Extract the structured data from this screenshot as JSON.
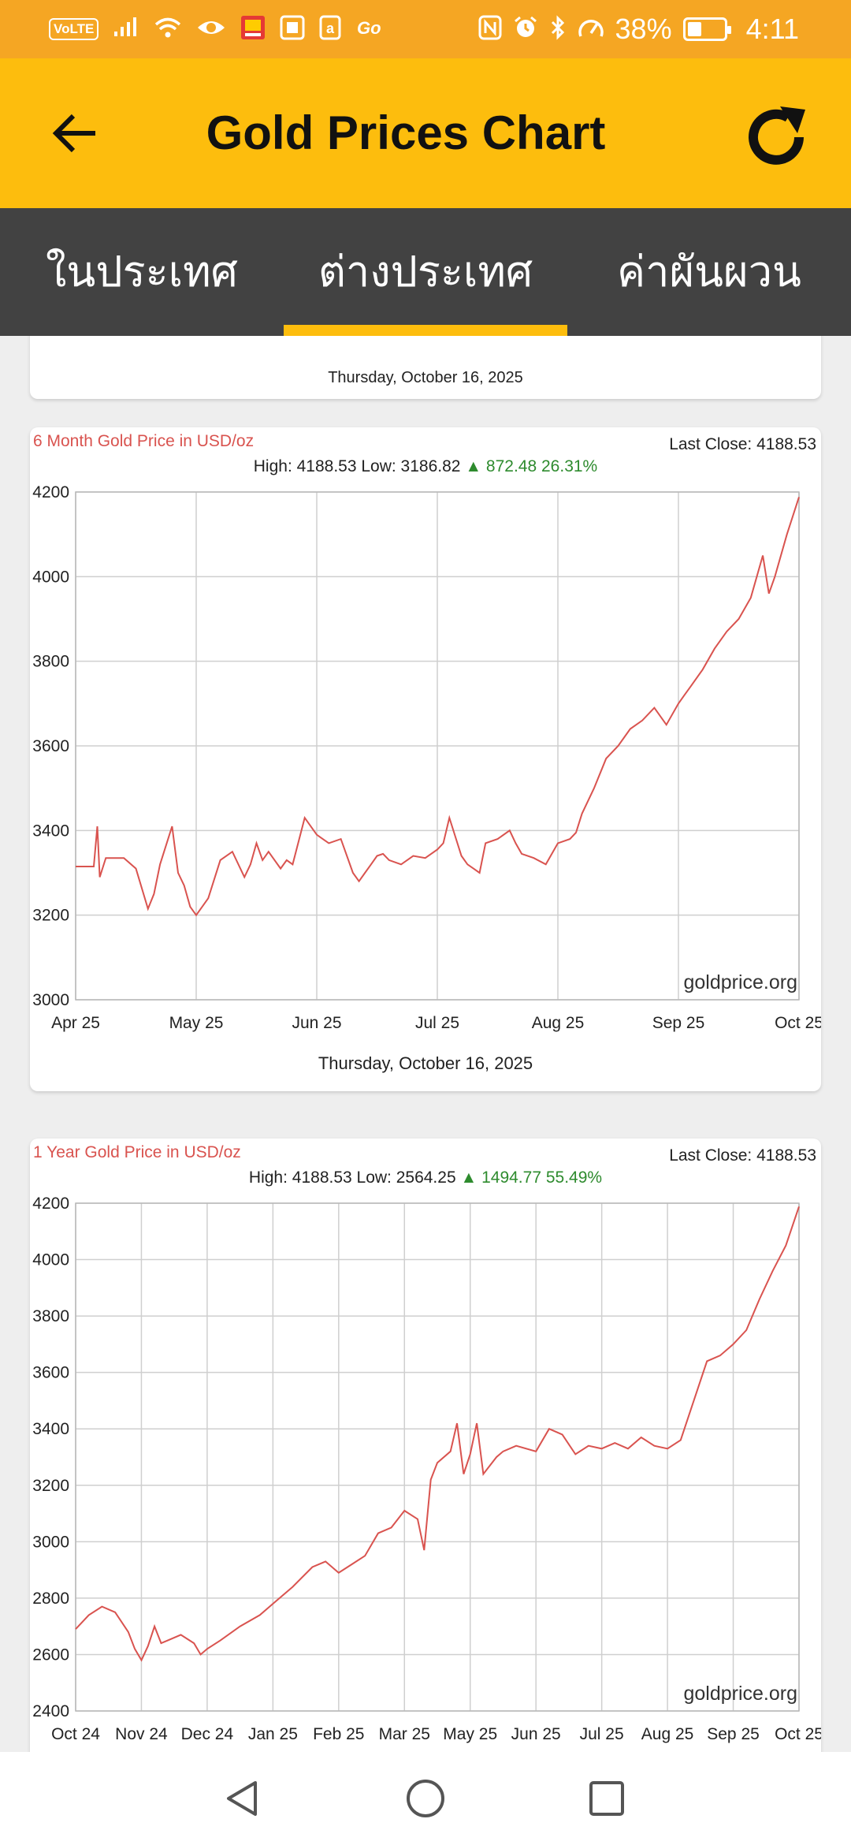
{
  "status_bar": {
    "volte": "VoLTE",
    "battery_percent": "38%",
    "battery_level": 0.38,
    "time": "4:11",
    "left_icons": [
      "signal-icon",
      "wifi-icon",
      "eye-icon",
      "app-notification-icon",
      "image-icon",
      "amazon-icon",
      "go-icon"
    ],
    "right_icons": [
      "nfc-icon",
      "alarm-icon",
      "bluetooth-icon",
      "speed-icon"
    ]
  },
  "app_bar": {
    "title": "Gold Prices Chart",
    "background": "#fdbd0d",
    "icons": {
      "back": "arrow-left-icon",
      "refresh": "refresh-icon"
    }
  },
  "tabs": [
    {
      "label": "ในประเทศ",
      "active": false
    },
    {
      "label": "ต่างประเทศ",
      "active": true
    },
    {
      "label": "ค่าผันผวน",
      "active": false
    }
  ],
  "partial_card": {
    "date": "Thursday, October 16, 2025"
  },
  "chart_data": [
    {
      "type": "line",
      "title": "6 Month Gold Price in USD/oz",
      "last_close": "Last Close: 4188.53",
      "summary": "High: 4188.53 Low: 3186.82",
      "change": "▲ 872.48 26.31%",
      "watermark": "goldprice.org",
      "date_label": "Thursday, October 16, 2025",
      "x_ticks": [
        "Apr 25",
        "May 25",
        "Jun 25",
        "Jul 25",
        "Aug 25",
        "Sep 25",
        "Oct 25"
      ],
      "x_range": [
        0,
        6
      ],
      "ylim": [
        3000,
        4200
      ],
      "y_ticks": [
        4200,
        4000,
        3800,
        3600,
        3400,
        3200,
        3000
      ],
      "grid": true,
      "line_color": "#d9534f",
      "series": [
        {
          "x": [
            0,
            0.15,
            0.18,
            0.2,
            0.25,
            0.4,
            0.5,
            0.6,
            0.65,
            0.7,
            0.8,
            0.85,
            0.9,
            0.95,
            1.0,
            1.1,
            1.2,
            1.3,
            1.4,
            1.45,
            1.5,
            1.55,
            1.6,
            1.7,
            1.75,
            1.8,
            1.9,
            2.0,
            2.05,
            2.1,
            2.2,
            2.3,
            2.35,
            2.4,
            2.45,
            2.5,
            2.55,
            2.6,
            2.7,
            2.8,
            2.9,
            3.0,
            3.05,
            3.1,
            3.2,
            3.25,
            3.3,
            3.35,
            3.4,
            3.5,
            3.6,
            3.65,
            3.7,
            3.8,
            3.9,
            4.0,
            4.05,
            4.1,
            4.15,
            4.2,
            4.3,
            4.4,
            4.5,
            4.6,
            4.7,
            4.8,
            4.9,
            5.0,
            5.05,
            5.1,
            5.2,
            5.3,
            5.4,
            5.5,
            5.6,
            5.7,
            5.75,
            5.8,
            5.9,
            6.0
          ],
          "y": [
            3315,
            3315,
            3410,
            3290,
            3335,
            3335,
            3310,
            3215,
            3250,
            3320,
            3410,
            3300,
            3270,
            3220,
            3200,
            3240,
            3330,
            3350,
            3290,
            3320,
            3370,
            3330,
            3350,
            3310,
            3330,
            3320,
            3430,
            3390,
            3380,
            3370,
            3380,
            3300,
            3280,
            3300,
            3320,
            3340,
            3345,
            3330,
            3320,
            3340,
            3335,
            3355,
            3370,
            3430,
            3340,
            3320,
            3310,
            3300,
            3370,
            3380,
            3400,
            3370,
            3345,
            3335,
            3320,
            3370,
            3375,
            3380,
            3395,
            3440,
            3500,
            3570,
            3600,
            3640,
            3660,
            3690,
            3650,
            3700,
            3720,
            3740,
            3780,
            3830,
            3870,
            3900,
            3950,
            4050,
            3960,
            4000,
            4100,
            4188
          ]
        }
      ]
    },
    {
      "type": "line",
      "title": "1 Year Gold Price in USD/oz",
      "last_close": "Last Close: 4188.53",
      "summary": "High: 4188.53 Low: 2564.25",
      "change": "▲ 1494.77 55.49%",
      "watermark": "goldprice.org",
      "x_ticks": [
        "Oct 24",
        "Nov 24",
        "Dec 24",
        "Jan 25",
        "Feb 25",
        "Mar 25",
        "May 25",
        "Jun 25",
        "Jul 25",
        "Aug 25",
        "Sep 25",
        "Oct 25"
      ],
      "x_range": [
        0,
        11
      ],
      "ylim": [
        2400,
        4200
      ],
      "y_ticks": [
        4200,
        4000,
        3800,
        3600,
        3400,
        3200,
        3000,
        2800,
        2600,
        2400
      ],
      "grid": true,
      "line_color": "#d9534f",
      "series": [
        {
          "x": [
            0,
            0.2,
            0.4,
            0.6,
            0.8,
            0.9,
            1.0,
            1.1,
            1.2,
            1.3,
            1.4,
            1.6,
            1.8,
            1.9,
            2.0,
            2.2,
            2.5,
            2.8,
            3.0,
            3.3,
            3.6,
            3.8,
            4.0,
            4.2,
            4.4,
            4.6,
            4.8,
            5.0,
            5.2,
            5.3,
            5.4,
            5.5,
            5.7,
            5.8,
            5.9,
            6.0,
            6.1,
            6.2,
            6.4,
            6.5,
            6.7,
            7.0,
            7.2,
            7.4,
            7.6,
            7.8,
            8.0,
            8.2,
            8.4,
            8.6,
            8.8,
            9.0,
            9.2,
            9.4,
            9.6,
            9.8,
            10.0,
            10.2,
            10.4,
            10.6,
            10.8,
            11.0
          ],
          "y": [
            2690,
            2740,
            2770,
            2750,
            2680,
            2620,
            2580,
            2630,
            2700,
            2640,
            2650,
            2670,
            2640,
            2600,
            2620,
            2650,
            2700,
            2740,
            2780,
            2840,
            2910,
            2930,
            2890,
            2920,
            2950,
            3030,
            3050,
            3110,
            3080,
            2970,
            3220,
            3280,
            3320,
            3420,
            3240,
            3310,
            3420,
            3240,
            3300,
            3320,
            3340,
            3320,
            3400,
            3380,
            3310,
            3340,
            3330,
            3350,
            3330,
            3370,
            3340,
            3330,
            3360,
            3500,
            3640,
            3660,
            3700,
            3750,
            3860,
            3960,
            4050,
            4188
          ]
        }
      ]
    }
  ]
}
